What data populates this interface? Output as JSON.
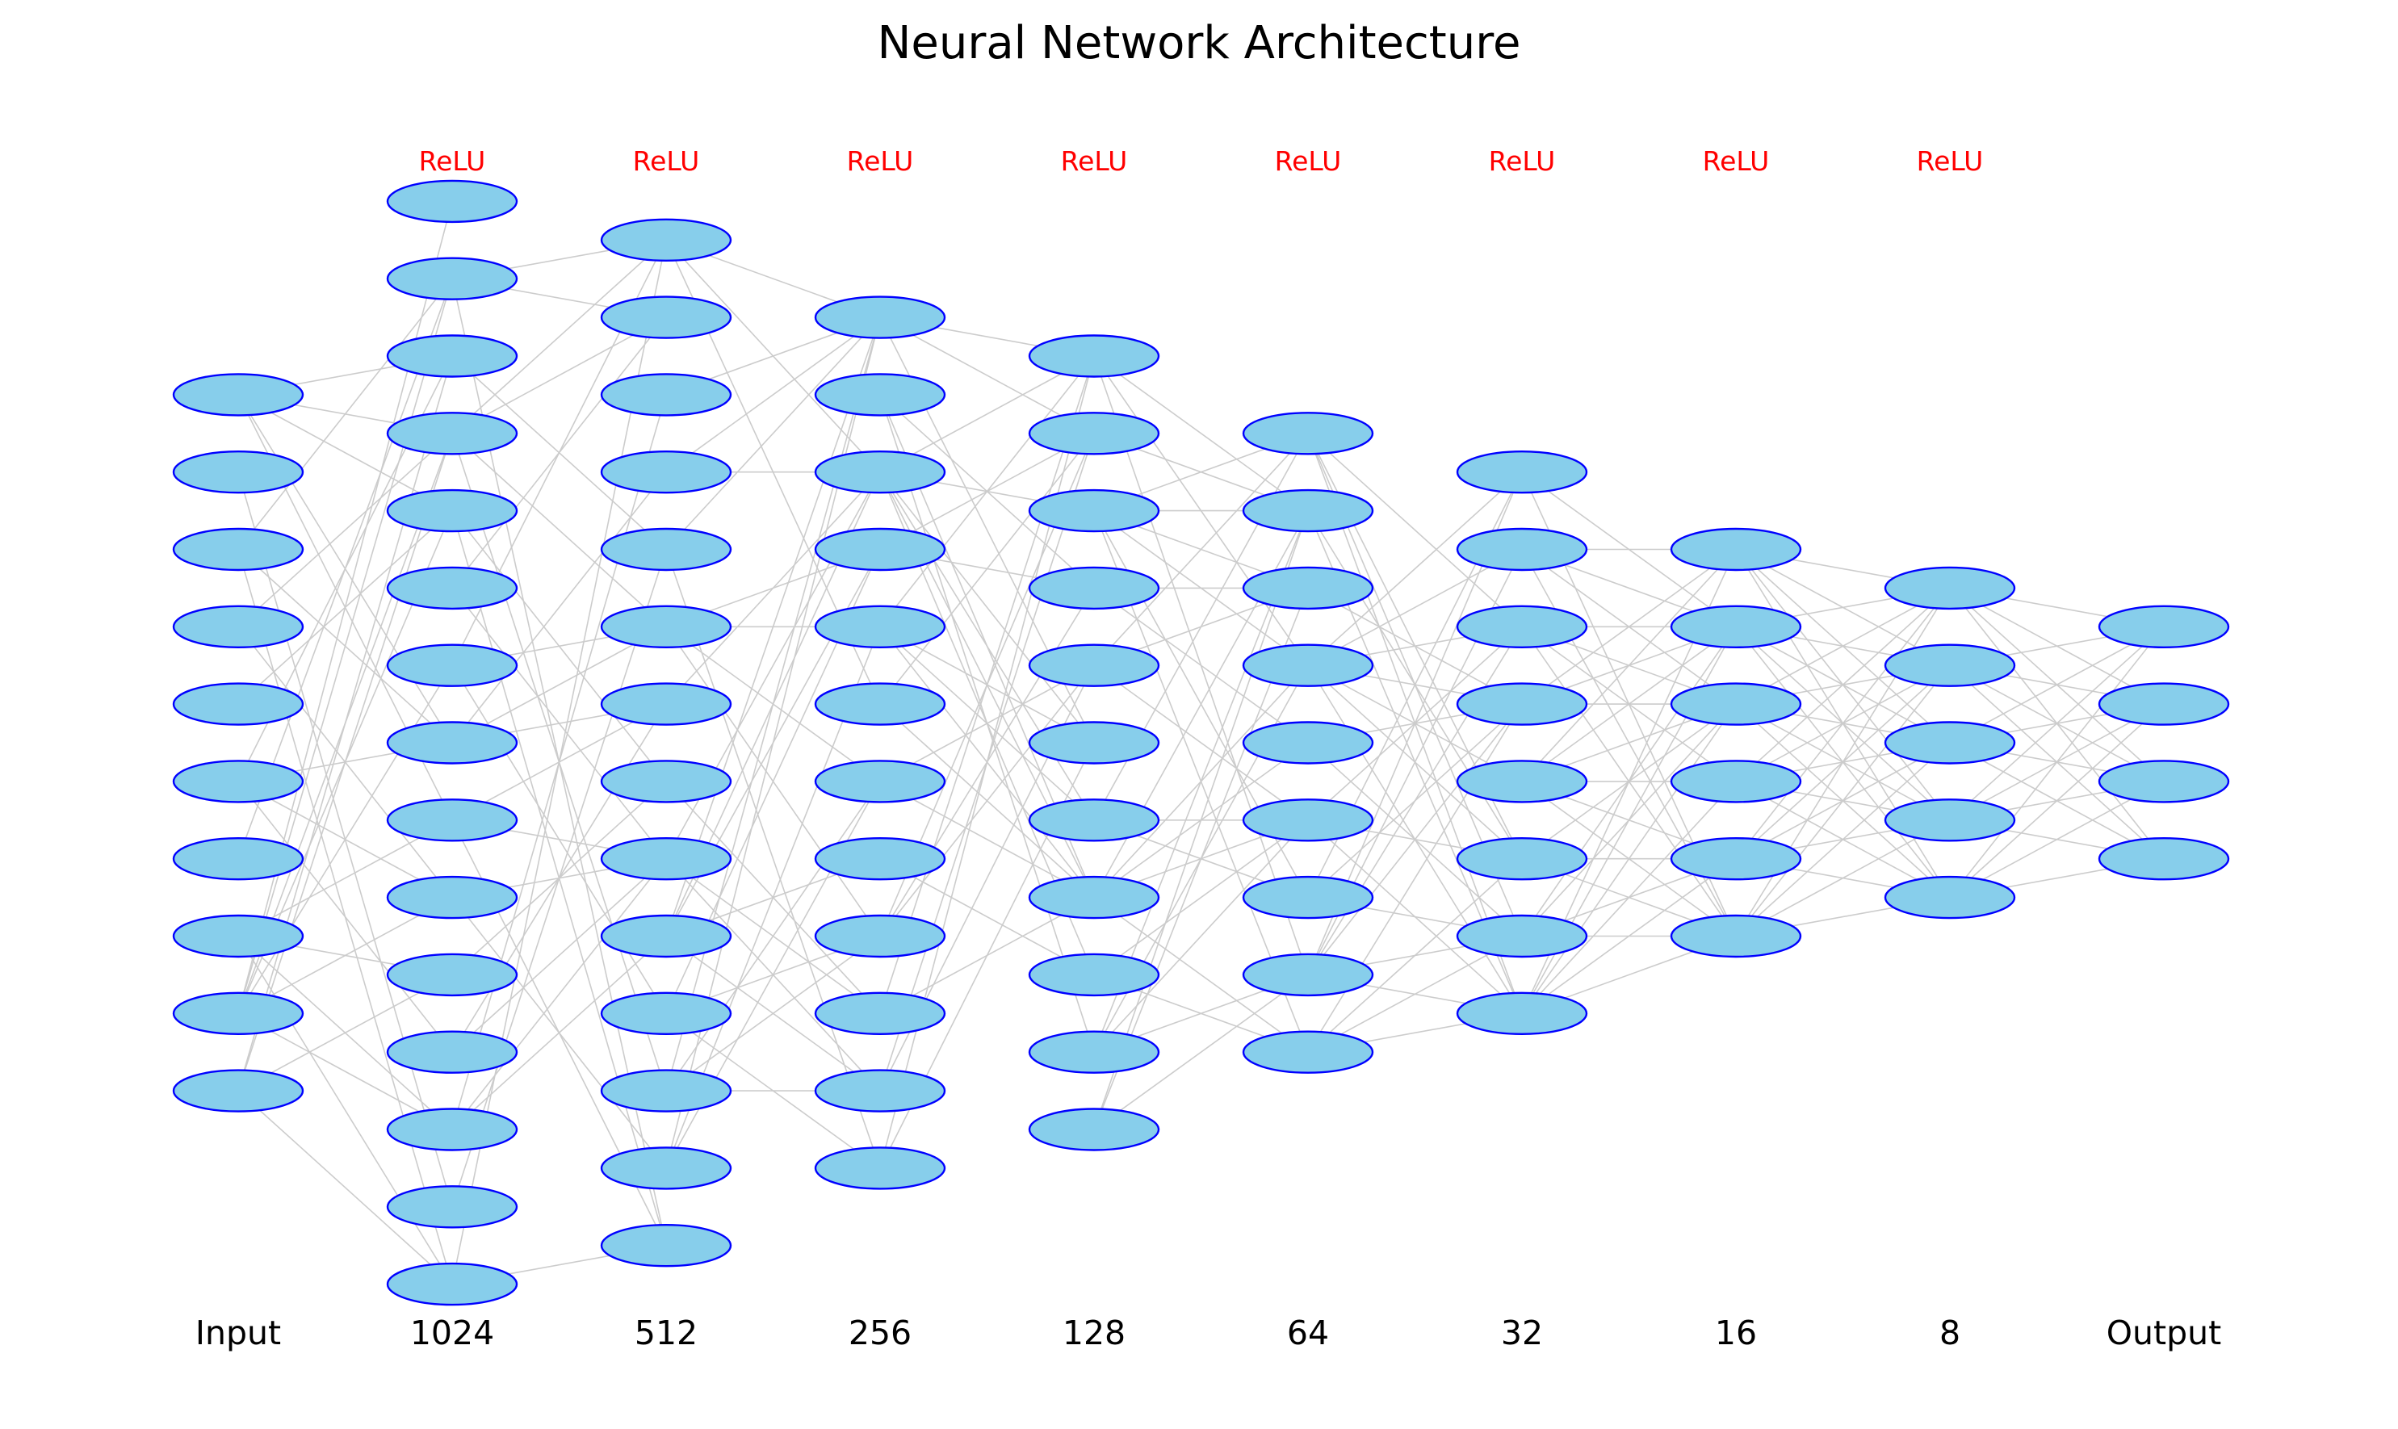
{
  "title": "Neural Network Architecture",
  "layers": [
    {
      "label": "Input",
      "neurons": 10,
      "activation": ""
    },
    {
      "label": "1024",
      "neurons": 15,
      "activation": "ReLU"
    },
    {
      "label": "512",
      "neurons": 14,
      "activation": "ReLU"
    },
    {
      "label": "256",
      "neurons": 12,
      "activation": "ReLU"
    },
    {
      "label": "128",
      "neurons": 11,
      "activation": "ReLU"
    },
    {
      "label": "64",
      "neurons": 9,
      "activation": "ReLU"
    },
    {
      "label": "32",
      "neurons": 8,
      "activation": "ReLU"
    },
    {
      "label": "16",
      "neurons": 6,
      "activation": "ReLU"
    },
    {
      "label": "8",
      "neurons": 5,
      "activation": "ReLU"
    },
    {
      "label": "Output",
      "neurons": 4,
      "activation": ""
    }
  ],
  "colors": {
    "neuron_fill": "#87ceeb",
    "neuron_stroke": "#0000ff",
    "edge": "#cccccc",
    "activation_text": "#ff0000",
    "text": "#000000"
  }
}
